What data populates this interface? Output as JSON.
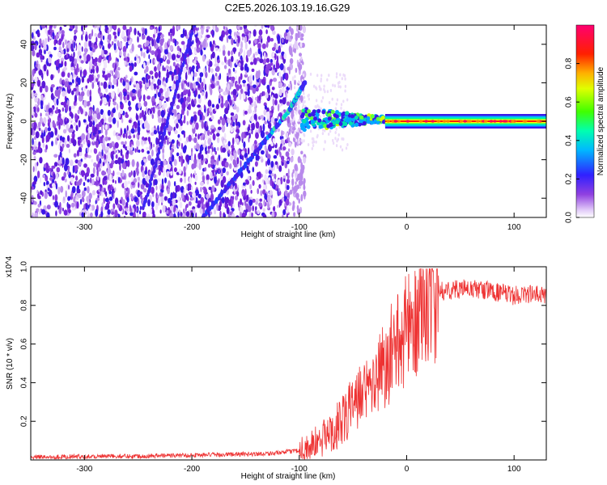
{
  "title": "C2E5.2026.103.19.16.G29",
  "chart_data": [
    {
      "type": "heatmap",
      "title": "C2E5.2026.103.19.16.G29",
      "xlabel": "Height of straight line (km)",
      "ylabel": "Frequency (Hz)",
      "xlim": [
        -350,
        130
      ],
      "ylim": [
        -50,
        50
      ],
      "xticks": [
        -300,
        -200,
        -100,
        0,
        100
      ],
      "yticks": [
        -40,
        -20,
        0,
        20,
        40
      ],
      "colorbar": {
        "label": "Normalized spectral amplitude",
        "range": [
          0,
          1
        ],
        "ticks": [
          0.0,
          0.2,
          0.4,
          0.6,
          0.8
        ],
        "colors": [
          "#ffffff",
          "#c8a8f0",
          "#7a20e0",
          "#3020ff",
          "#00c8ff",
          "#00ff80",
          "#80ff00",
          "#ffff00",
          "#ff8000",
          "#ff0000",
          "#ff0070"
        ]
      },
      "features": [
        {
          "name": "noise",
          "x_range": [
            -350,
            -100
          ],
          "freq_range": [
            -50,
            50
          ]
        },
        {
          "name": "main diagonal",
          "x": [
            -190,
            -110,
            -95
          ],
          "freq": [
            -50,
            5,
            20
          ]
        },
        {
          "name": "aliased diagonal",
          "x": [
            -245,
            -198
          ],
          "freq": [
            -45,
            50
          ]
        },
        {
          "name": "carrier",
          "x": [
            -100,
            130
          ],
          "freq": [
            0,
            0
          ]
        }
      ]
    },
    {
      "type": "line",
      "xlabel": "Height of straight line (km)",
      "ylabel": "SNR (10 * v/v)",
      "y_multiplier": "x10^4",
      "xlim": [
        -350,
        130
      ],
      "ylim": [
        0,
        1.0
      ],
      "xticks": [
        -300,
        -200,
        -100,
        0,
        100
      ],
      "yticks": [
        0.2,
        0.4,
        0.6,
        0.8,
        1.0
      ],
      "series": [
        {
          "name": "SNR",
          "color": "#ee3333",
          "x": [
            -350,
            -300,
            -250,
            -200,
            -150,
            -120,
            -100,
            -90,
            -80,
            -70,
            -60,
            -50,
            -40,
            -30,
            -20,
            -10,
            0,
            10,
            20,
            30,
            40,
            50,
            60,
            70,
            80,
            90,
            100,
            110,
            120,
            130
          ],
          "y": [
            0.015,
            0.018,
            0.02,
            0.025,
            0.03,
            0.035,
            0.05,
            0.07,
            0.1,
            0.15,
            0.2,
            0.28,
            0.35,
            0.42,
            0.5,
            0.58,
            0.67,
            0.76,
            0.83,
            0.87,
            0.88,
            0.885,
            0.885,
            0.88,
            0.875,
            0.86,
            0.85,
            0.86,
            0.855,
            0.85
          ]
        }
      ]
    }
  ]
}
